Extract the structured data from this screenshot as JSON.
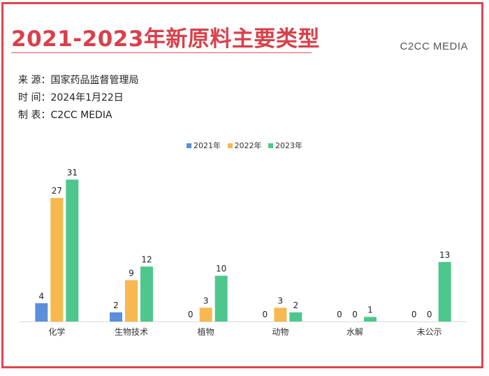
{
  "header": {
    "title": "2021-2023年新原料主要类型",
    "brand": "C2CC MEDIA"
  },
  "meta": {
    "source": "来  源：国家药品监督管理局",
    "time": "时  间：2024年1月22日",
    "maker": "制  表：C2CC   MEDIA"
  },
  "colors": {
    "accent": "#e0454f",
    "s2021": "#5b8fdb",
    "s2022": "#f7b84f",
    "s2023": "#4dc78c"
  },
  "chart_data": {
    "type": "bar",
    "categories": [
      "化学",
      "生物技术",
      "植物",
      "动物",
      "水解",
      "未公示"
    ],
    "series": [
      {
        "name": "2021年",
        "values": [
          4,
          2,
          0,
          0,
          0,
          0
        ]
      },
      {
        "name": "2022年",
        "values": [
          27,
          9,
          3,
          3,
          0,
          0
        ]
      },
      {
        "name": "2023年",
        "values": [
          31,
          12,
          10,
          2,
          1,
          13
        ]
      }
    ],
    "ylim": [
      0,
      31
    ],
    "grid": false,
    "data_labels": true,
    "legend_position": "top"
  }
}
